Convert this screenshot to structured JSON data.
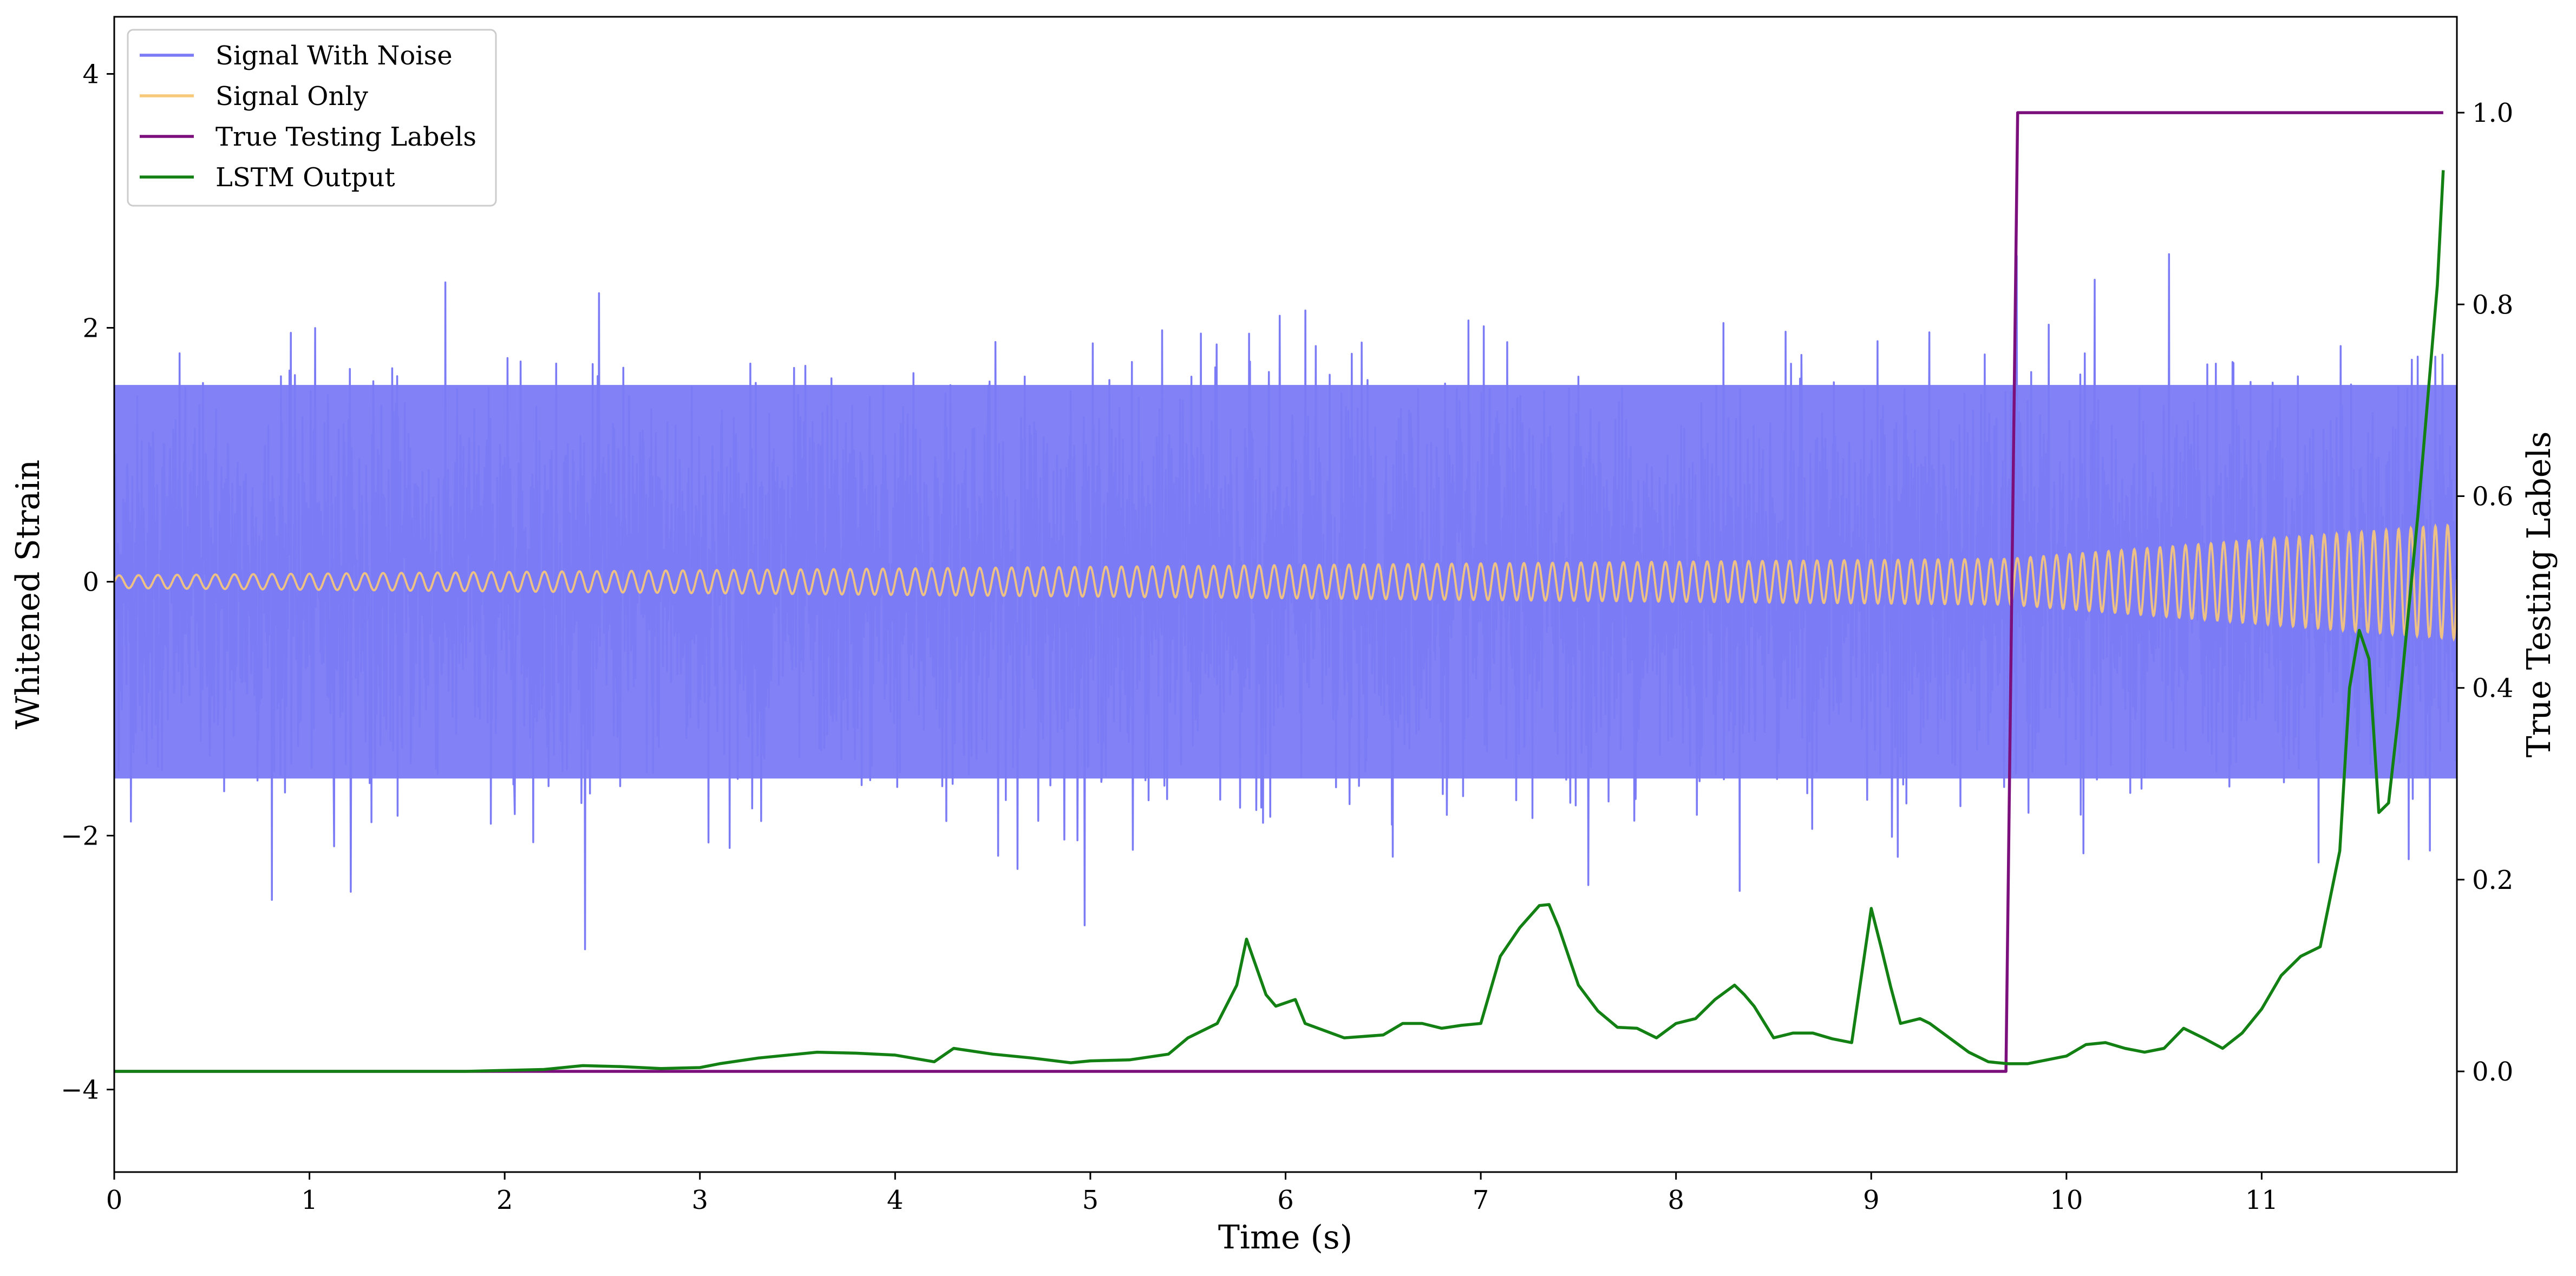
{
  "chart_data": {
    "type": "line",
    "xlabel": "Time (s)",
    "ylabel": "Whitened Strain",
    "y2label": "True Testing Labels",
    "xlim": [
      0,
      12.0
    ],
    "ylim": [
      -4.65,
      4.45
    ],
    "y2lim": [
      -0.105,
      1.1
    ],
    "x_ticks": [
      0,
      1,
      2,
      3,
      4,
      5,
      6,
      7,
      8,
      9,
      10,
      11
    ],
    "y_ticks": [
      -4,
      -2,
      0,
      2,
      4
    ],
    "y_tick_labels": [
      "−4",
      "−2",
      "0",
      "2",
      "4"
    ],
    "y2_ticks": [
      0.0,
      0.2,
      0.4,
      0.6,
      0.8,
      1.0
    ],
    "y2_tick_labels": [
      "0.0",
      "0.2",
      "0.4",
      "0.6",
      "0.8",
      "1.0"
    ],
    "grid": false,
    "legend": "upper-left",
    "series": [
      {
        "name": "Signal With Noise",
        "color": "#7b7bf5",
        "axis": "left",
        "style": "noise",
        "sigma": 0.72,
        "envelope": [
          -1.55,
          1.55
        ],
        "x_range": [
          0,
          12.0
        ]
      },
      {
        "name": "Signal Only",
        "color": "#f9c97a",
        "axis": "left",
        "style": "chirp",
        "amplitude": [
          [
            0,
            0.05
          ],
          [
            9.7,
            0.18
          ],
          [
            12.0,
            0.45
          ]
        ],
        "x_range": [
          0,
          12.0
        ]
      },
      {
        "name": "True Testing Labels",
        "color": "#7b0f7b",
        "axis": "right",
        "x": [
          0,
          9.69,
          9.75,
          11.93
        ],
        "y": [
          0,
          0,
          1,
          1
        ]
      },
      {
        "name": "LSTM Output",
        "color": "#128012",
        "axis": "right",
        "x": [
          0,
          1.0,
          1.8,
          2.2,
          2.4,
          2.6,
          2.8,
          3.0,
          3.1,
          3.3,
          3.5,
          3.6,
          3.8,
          4.0,
          4.2,
          4.3,
          4.5,
          4.7,
          4.9,
          5.0,
          5.2,
          5.4,
          5.5,
          5.65,
          5.75,
          5.8,
          5.9,
          5.95,
          6.05,
          6.1,
          6.3,
          6.5,
          6.6,
          6.7,
          6.8,
          6.9,
          7.0,
          7.1,
          7.2,
          7.3,
          7.35,
          7.4,
          7.5,
          7.6,
          7.7,
          7.8,
          7.9,
          8.0,
          8.1,
          8.2,
          8.3,
          8.35,
          8.4,
          8.5,
          8.6,
          8.7,
          8.8,
          8.9,
          9.0,
          9.05,
          9.1,
          9.15,
          9.25,
          9.3,
          9.5,
          9.6,
          9.7,
          9.8,
          9.9,
          10.0,
          10.1,
          10.2,
          10.3,
          10.4,
          10.5,
          10.6,
          10.7,
          10.8,
          10.9,
          11.0,
          11.1,
          11.2,
          11.3,
          11.4,
          11.45,
          11.5,
          11.55,
          11.6,
          11.65,
          11.7,
          11.8,
          11.9,
          11.93
        ],
        "y": [
          0.0,
          0.0,
          0.0,
          0.002,
          0.006,
          0.005,
          0.003,
          0.004,
          0.008,
          0.014,
          0.018,
          0.02,
          0.019,
          0.017,
          0.01,
          0.024,
          0.018,
          0.014,
          0.009,
          0.011,
          0.012,
          0.018,
          0.035,
          0.05,
          0.09,
          0.138,
          0.08,
          0.068,
          0.075,
          0.05,
          0.035,
          0.038,
          0.05,
          0.05,
          0.045,
          0.048,
          0.05,
          0.12,
          0.15,
          0.173,
          0.174,
          0.15,
          0.09,
          0.063,
          0.046,
          0.045,
          0.035,
          0.05,
          0.055,
          0.075,
          0.09,
          0.08,
          0.068,
          0.035,
          0.04,
          0.04,
          0.034,
          0.03,
          0.17,
          0.13,
          0.088,
          0.05,
          0.055,
          0.05,
          0.02,
          0.01,
          0.008,
          0.008,
          0.012,
          0.016,
          0.028,
          0.03,
          0.024,
          0.02,
          0.024,
          0.045,
          0.035,
          0.024,
          0.04,
          0.065,
          0.1,
          0.12,
          0.13,
          0.23,
          0.4,
          0.46,
          0.43,
          0.27,
          0.28,
          0.37,
          0.58,
          0.82,
          0.94
        ]
      }
    ]
  }
}
